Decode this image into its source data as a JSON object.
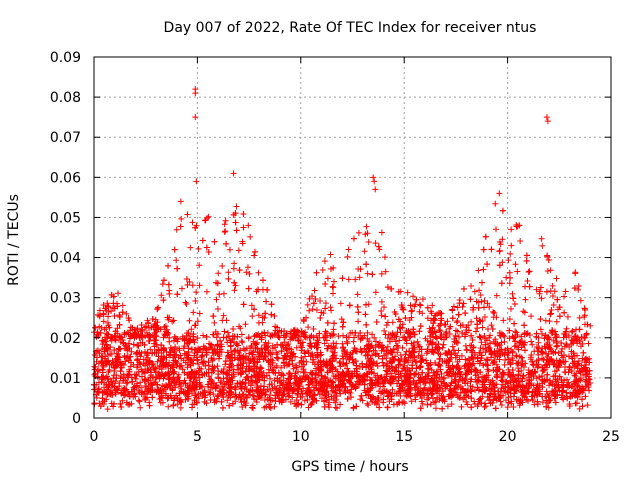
{
  "chart_data": {
    "type": "scatter",
    "title": "Day 007 of 2022, Rate Of TEC Index for receiver ntus",
    "xlabel": "GPS time / hours",
    "ylabel": "ROTI / TECUs",
    "xlim": [
      0,
      25
    ],
    "ylim": [
      0,
      0.09
    ],
    "x_ticks": [
      "0",
      "5",
      "10",
      "15",
      "20",
      "25"
    ],
    "y_ticks": [
      "0",
      "0.01",
      "0.02",
      "0.03",
      "0.04",
      "0.05",
      "0.06",
      "0.07",
      "0.08",
      "0.09"
    ],
    "grid": true,
    "marker": "+",
    "color": "#ff0000",
    "baseline": {
      "typical_range": [
        0.005,
        0.02
      ],
      "x_range": [
        0,
        24
      ]
    },
    "envelope": [
      {
        "x": 0.0,
        "ymax": 0.025
      },
      {
        "x": 1.0,
        "ymax": 0.033
      },
      {
        "x": 2.0,
        "ymax": 0.022
      },
      {
        "x": 3.0,
        "ymax": 0.026
      },
      {
        "x": 3.5,
        "ymax": 0.038
      },
      {
        "x": 4.2,
        "ymax": 0.054
      },
      {
        "x": 5.0,
        "ymax": 0.059
      },
      {
        "x": 5.5,
        "ymax": 0.051
      },
      {
        "x": 6.0,
        "ymax": 0.042
      },
      {
        "x": 6.8,
        "ymax": 0.061
      },
      {
        "x": 8.0,
        "ymax": 0.038
      },
      {
        "x": 9.0,
        "ymax": 0.022
      },
      {
        "x": 10.0,
        "ymax": 0.022
      },
      {
        "x": 11.0,
        "ymax": 0.043
      },
      {
        "x": 12.3,
        "ymax": 0.045
      },
      {
        "x": 13.6,
        "ymax": 0.059
      },
      {
        "x": 14.5,
        "ymax": 0.032
      },
      {
        "x": 15.5,
        "ymax": 0.032
      },
      {
        "x": 17.0,
        "ymax": 0.026
      },
      {
        "x": 18.5,
        "ymax": 0.037
      },
      {
        "x": 19.5,
        "ymax": 0.056
      },
      {
        "x": 20.3,
        "ymax": 0.049
      },
      {
        "x": 21.5,
        "ymax": 0.047
      },
      {
        "x": 22.5,
        "ymax": 0.038
      },
      {
        "x": 23.5,
        "ymax": 0.036
      },
      {
        "x": 24.0,
        "ymax": 0.027
      }
    ],
    "spikes": [
      {
        "x": 4.9,
        "y": 0.082
      },
      {
        "x": 4.9,
        "y": 0.081
      },
      {
        "x": 4.9,
        "y": 0.075
      },
      {
        "x": 4.95,
        "y": 0.059
      },
      {
        "x": 21.9,
        "y": 0.075
      },
      {
        "x": 21.95,
        "y": 0.074
      },
      {
        "x": 13.5,
        "y": 0.06
      },
      {
        "x": 13.55,
        "y": 0.059
      },
      {
        "x": 13.6,
        "y": 0.057
      },
      {
        "x": 6.75,
        "y": 0.061
      },
      {
        "x": 19.6,
        "y": 0.056
      },
      {
        "x": 4.2,
        "y": 0.054
      }
    ]
  }
}
